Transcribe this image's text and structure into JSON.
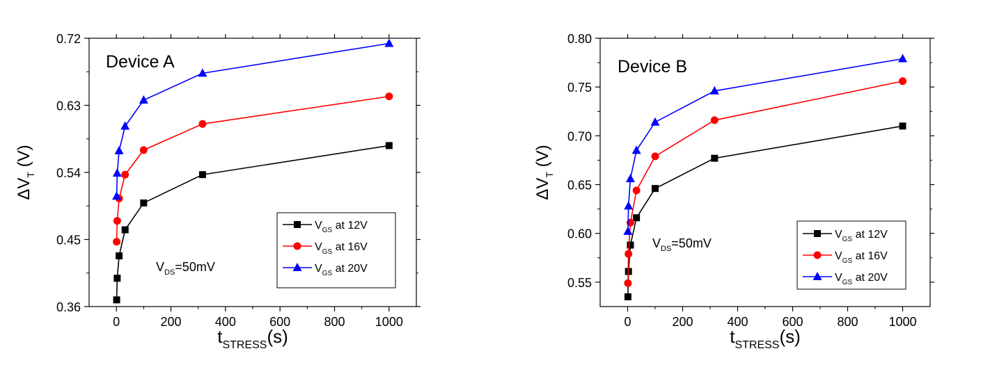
{
  "chart_data": [
    {
      "type": "line",
      "title": "Device A",
      "annotation": {
        "main": "V",
        "sub": "DS",
        "rest": "=50mV"
      },
      "xlabel": {
        "main": "t",
        "sub": "STRESS",
        "rest": "(s)"
      },
      "ylabel": {
        "main": "ΔV",
        "sub": "T",
        "rest": " (V)"
      },
      "xlim": [
        -100,
        1100
      ],
      "ylim": [
        0.36,
        0.72
      ],
      "xticks": [
        0,
        200,
        400,
        600,
        800,
        1000
      ],
      "xtick_labels": [
        "0",
        "200",
        "400",
        "600",
        "800",
        "1000"
      ],
      "yticks": [
        0.36,
        0.45,
        0.54,
        0.63,
        0.72
      ],
      "ytick_labels": [
        "0.36",
        "0.45",
        "0.54",
        "0.63",
        "0.72"
      ],
      "legend_position": "lower-right",
      "x": [
        1,
        3,
        10,
        32,
        100,
        316,
        1000
      ],
      "series": [
        {
          "name": "V_GS at 12V",
          "label_main": "V",
          "label_sub": "GS",
          "label_rest": " at  12V",
          "marker": "square",
          "color": "#000000",
          "values": [
            0.369,
            0.398,
            0.428,
            0.463,
            0.499,
            0.537,
            0.576
          ]
        },
        {
          "name": "V_GS at 16V",
          "label_main": "V",
          "label_sub": "GS",
          "label_rest": " at  16V",
          "marker": "circle",
          "color": "#ff0000",
          "values": [
            0.447,
            0.475,
            0.505,
            0.537,
            0.57,
            0.605,
            0.642
          ]
        },
        {
          "name": "V_GS at 20V",
          "label_main": "V",
          "label_sub": "GS",
          "label_rest": " at  20V",
          "marker": "triangle",
          "color": "#0000ff",
          "values": [
            0.508,
            0.539,
            0.569,
            0.602,
            0.637,
            0.673,
            0.713
          ]
        }
      ]
    },
    {
      "type": "line",
      "title": "Device B",
      "annotation": {
        "main": "V",
        "sub": "DS",
        "rest": "=50mV"
      },
      "xlabel": {
        "main": "t",
        "sub": "STRESS",
        "rest": "(s)"
      },
      "ylabel": {
        "main": "ΔV",
        "sub": "T",
        "rest": " (V)"
      },
      "xlim": [
        -100,
        1100
      ],
      "ylim": [
        0.525,
        0.8
      ],
      "xticks": [
        0,
        200,
        400,
        600,
        800,
        1000
      ],
      "xtick_labels": [
        "0",
        "200",
        "400",
        "600",
        "800",
        "1000"
      ],
      "yticks": [
        0.55,
        0.6,
        0.65,
        0.7,
        0.75,
        0.8
      ],
      "ytick_labels": [
        "0.55",
        "0.60",
        "0.65",
        "0.70",
        "0.75",
        "0.80"
      ],
      "legend_position": "lower-right",
      "x": [
        1,
        3,
        10,
        32,
        100,
        316,
        1000
      ],
      "series": [
        {
          "name": "V_GS at 12V",
          "label_main": "V",
          "label_sub": "GS",
          "label_rest": " at  12V",
          "marker": "square",
          "color": "#000000",
          "values": [
            0.535,
            0.561,
            0.588,
            0.616,
            0.646,
            0.677,
            0.71
          ]
        },
        {
          "name": "V_GS at 16V",
          "label_main": "V",
          "label_sub": "GS",
          "label_rest": " at  16V",
          "marker": "circle",
          "color": "#ff0000",
          "values": [
            0.549,
            0.579,
            0.611,
            0.644,
            0.679,
            0.716,
            0.756
          ]
        },
        {
          "name": "V_GS at 20V",
          "label_main": "V",
          "label_sub": "GS",
          "label_rest": " at  20V",
          "marker": "triangle",
          "color": "#0000ff",
          "values": [
            0.602,
            0.628,
            0.656,
            0.685,
            0.714,
            0.746,
            0.779
          ]
        }
      ]
    }
  ]
}
